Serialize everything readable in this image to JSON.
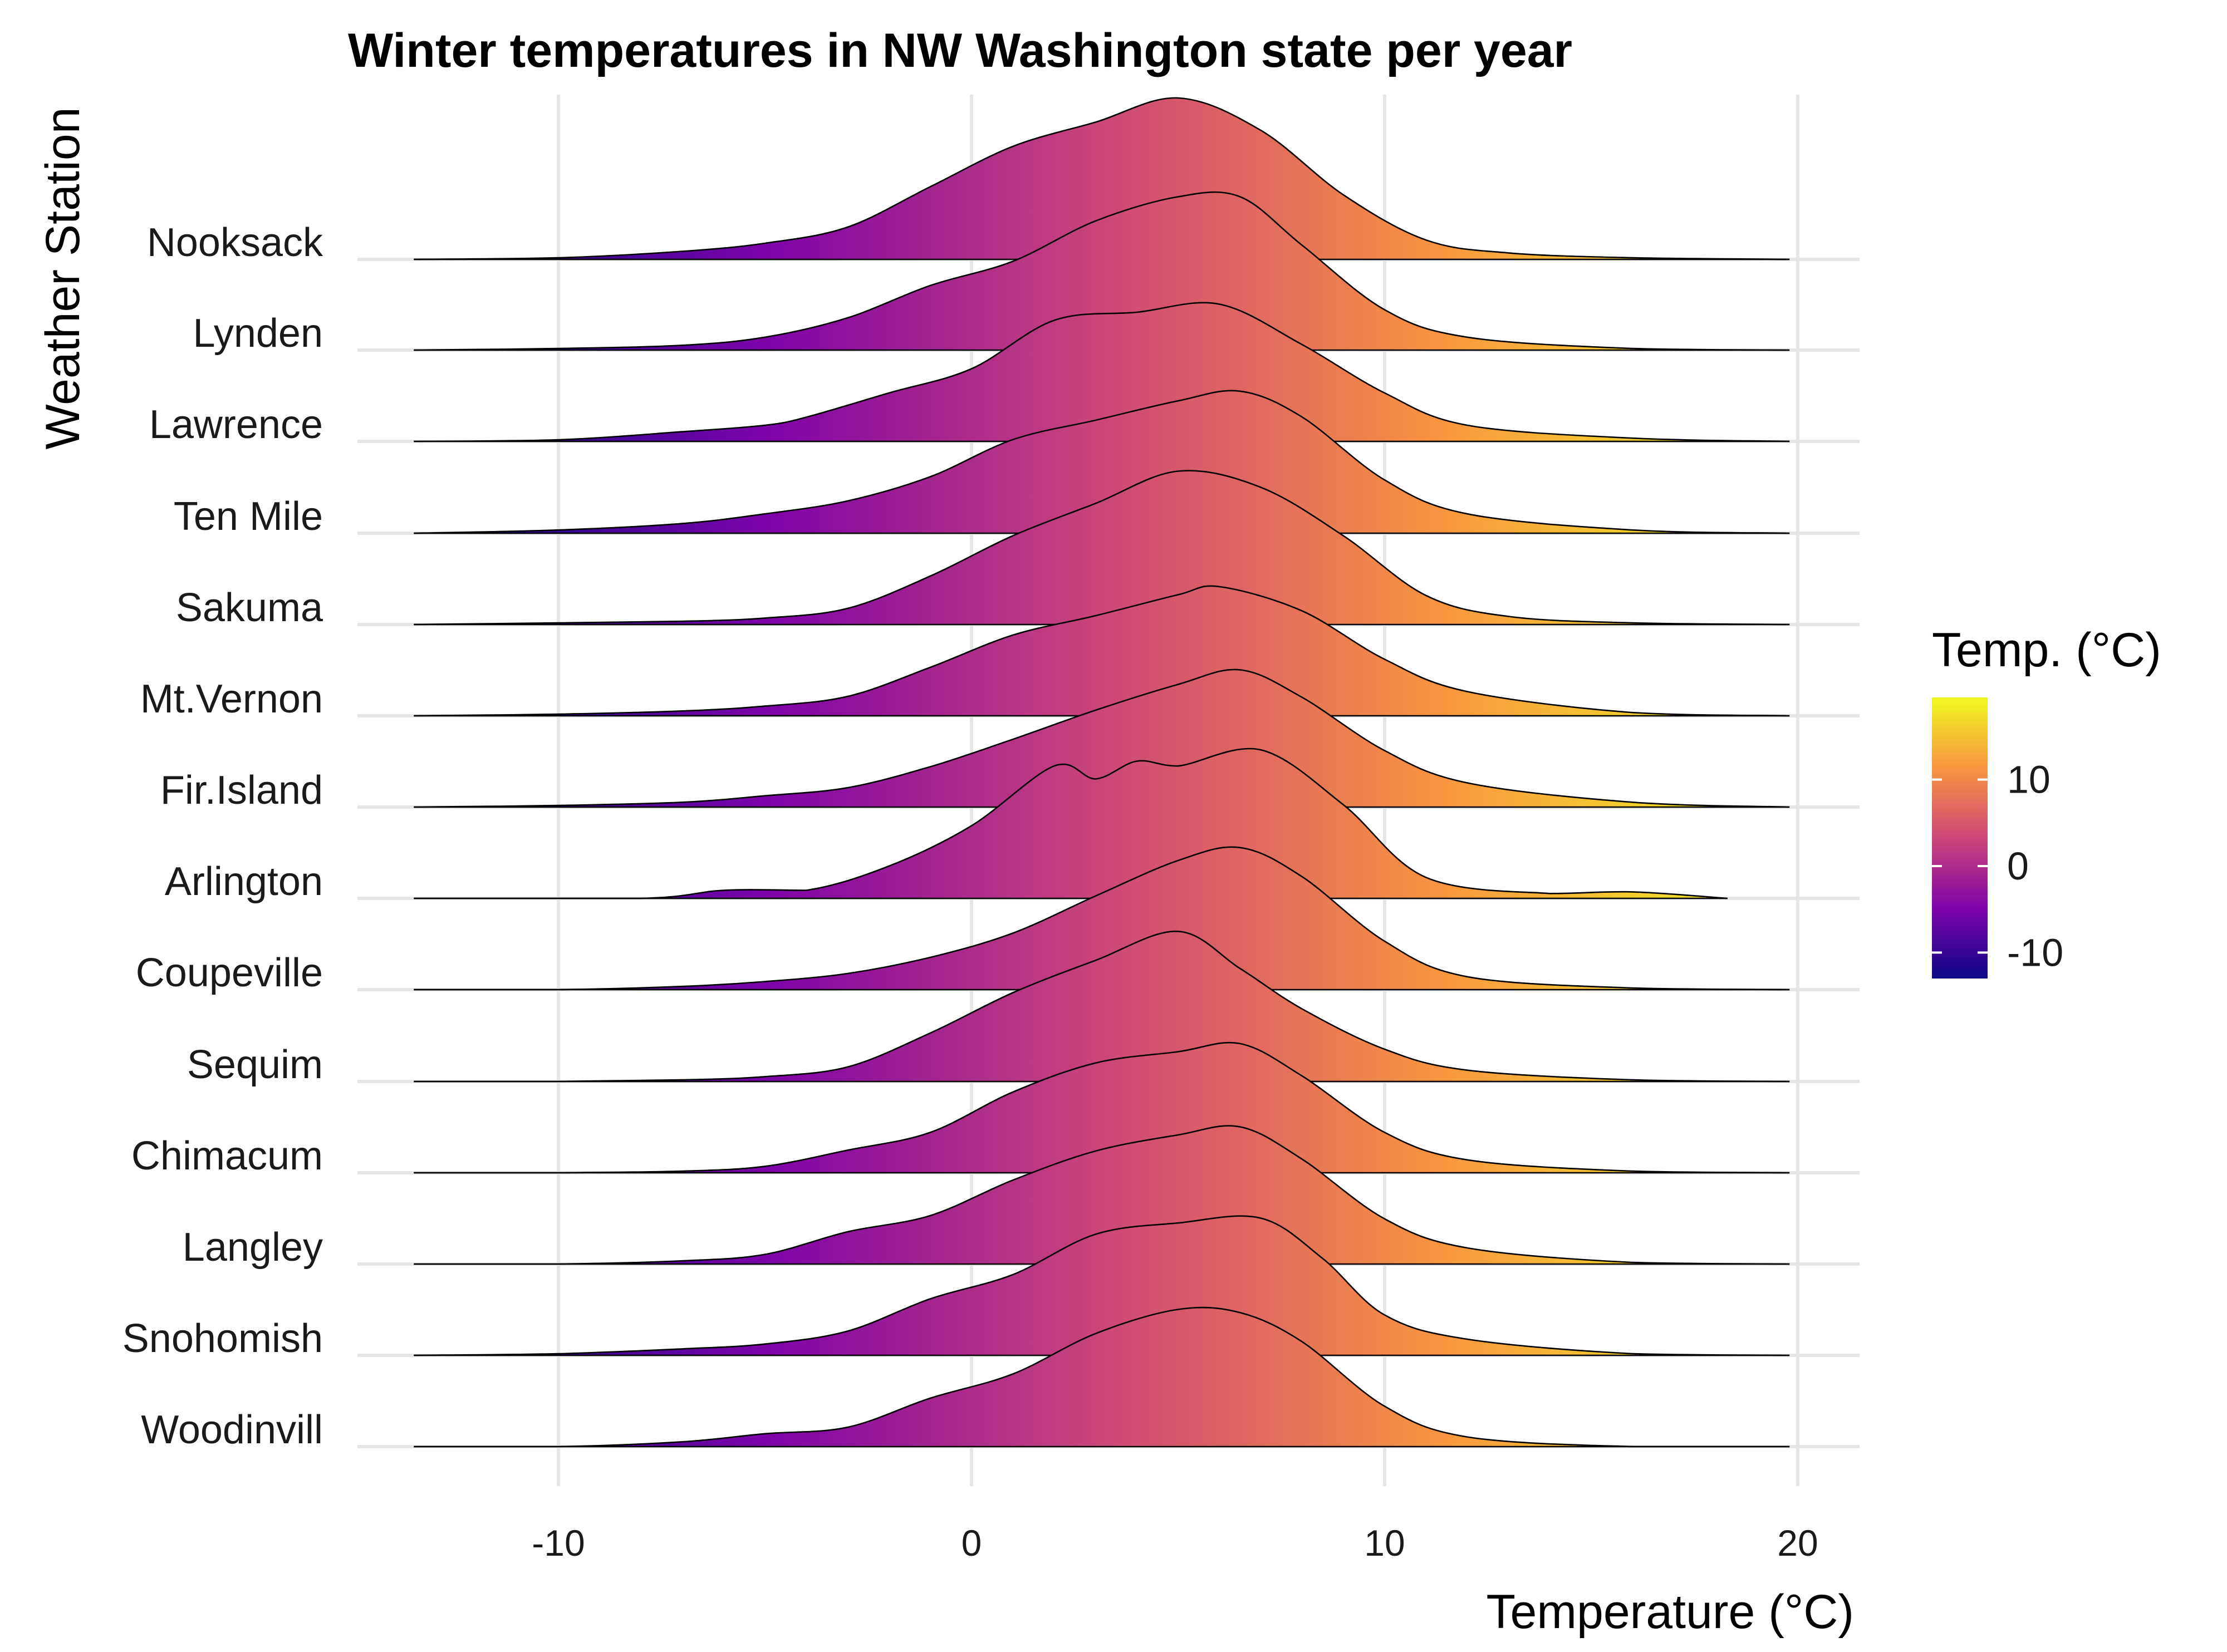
{
  "chart_data": {
    "type": "ridgeline",
    "title": "Winter temperatures in NW Washington state per year",
    "xlabel": "Temperature (°C)",
    "ylabel": "Weather Station",
    "xlim": [
      -15,
      21.5
    ],
    "x_ticks": [
      -10,
      0,
      10,
      20
    ],
    "x_tick_labels": [
      "-10",
      "0",
      "10",
      "20"
    ],
    "x_range_drawn": [
      -13.5,
      19.8
    ],
    "grid": true,
    "legend": {
      "title": "Temp. (°C)",
      "position": "right",
      "range": [
        -13,
        19.5
      ],
      "ticks": [
        10,
        0,
        -10
      ],
      "tick_labels": [
        "10",
        "0",
        "-10"
      ],
      "colors": [
        "#0D0887",
        "#7E03A8",
        "#CC4778",
        "#F89540",
        "#F0F921"
      ]
    },
    "stations": [
      {
        "name": "Nooksack",
        "x": [
          -13.5,
          -10,
          -7,
          -5,
          -3,
          -1,
          1,
          3,
          5,
          7,
          9,
          11,
          13,
          16,
          19.8
        ],
        "density": [
          0,
          0.01,
          0.05,
          0.1,
          0.2,
          0.45,
          0.7,
          0.85,
          1.0,
          0.8,
          0.4,
          0.12,
          0.04,
          0.01,
          0
        ]
      },
      {
        "name": "Lynden",
        "x": [
          -13.5,
          -10,
          -7,
          -5,
          -3,
          -1,
          1,
          3,
          5,
          6.5,
          8,
          10,
          12,
          16,
          19.8
        ],
        "density": [
          0,
          0.01,
          0.03,
          0.08,
          0.2,
          0.4,
          0.55,
          0.8,
          0.95,
          0.95,
          0.65,
          0.25,
          0.08,
          0.01,
          0
        ]
      },
      {
        "name": "Lawrence",
        "x": [
          -13.5,
          -10,
          -7,
          -5,
          -4,
          -2,
          0,
          2,
          4,
          6,
          8,
          10,
          12,
          16,
          19.8
        ],
        "density": [
          0,
          0.01,
          0.06,
          0.1,
          0.15,
          0.3,
          0.45,
          0.75,
          0.8,
          0.85,
          0.6,
          0.3,
          0.1,
          0.02,
          0
        ]
      },
      {
        "name": "Ten Mile",
        "x": [
          -13.5,
          -10,
          -7,
          -5,
          -3,
          -1,
          1,
          3,
          5,
          6.5,
          8,
          10,
          12,
          16,
          19.8
        ],
        "density": [
          0,
          0.02,
          0.06,
          0.12,
          0.2,
          0.35,
          0.58,
          0.7,
          0.82,
          0.88,
          0.72,
          0.33,
          0.12,
          0.02,
          0
        ]
      },
      {
        "name": "Sakuma",
        "x": [
          -13.5,
          -10,
          -7,
          -5,
          -3,
          -1,
          1,
          3,
          5,
          7,
          9,
          11,
          13,
          16,
          19.8
        ],
        "density": [
          0,
          0.01,
          0.02,
          0.04,
          0.1,
          0.3,
          0.55,
          0.75,
          0.95,
          0.85,
          0.55,
          0.18,
          0.05,
          0.01,
          0
        ]
      },
      {
        "name": "Mt.Vernon",
        "x": [
          -13.5,
          -10,
          -7,
          -5,
          -3,
          -1,
          1,
          3,
          5,
          6,
          8,
          10,
          12,
          16,
          19.8
        ],
        "density": [
          0,
          0.01,
          0.03,
          0.06,
          0.12,
          0.3,
          0.5,
          0.62,
          0.75,
          0.8,
          0.65,
          0.35,
          0.15,
          0.02,
          0
        ]
      },
      {
        "name": "Fir.Island",
        "x": [
          -13.5,
          -10,
          -7,
          -5,
          -3,
          -1,
          1,
          3,
          5,
          6.5,
          8,
          10,
          12,
          16,
          19.8
        ],
        "density": [
          0,
          0.01,
          0.03,
          0.07,
          0.12,
          0.25,
          0.42,
          0.6,
          0.76,
          0.85,
          0.68,
          0.35,
          0.15,
          0.03,
          0
        ]
      },
      {
        "name": "Arlington",
        "x": [
          -13.5,
          -8,
          -6,
          -4,
          -2,
          0,
          2,
          3,
          4,
          5,
          7,
          9,
          11,
          14,
          16,
          18.3
        ],
        "density": [
          0,
          0.0,
          0.05,
          0.05,
          0.2,
          0.45,
          0.82,
          0.74,
          0.85,
          0.82,
          0.92,
          0.58,
          0.13,
          0.03,
          0.04,
          0
        ]
      },
      {
        "name": "Coupeville",
        "x": [
          -13.5,
          -10,
          -7,
          -5,
          -3,
          -1,
          1,
          3,
          5,
          6.5,
          8,
          10,
          12,
          16,
          19.8
        ],
        "density": [
          0,
          0.0,
          0.02,
          0.05,
          0.1,
          0.2,
          0.35,
          0.58,
          0.8,
          0.88,
          0.7,
          0.3,
          0.08,
          0.01,
          0
        ]
      },
      {
        "name": "Sequim",
        "x": [
          -13.5,
          -10,
          -7,
          -5,
          -3,
          -1,
          1,
          3,
          5,
          6.5,
          8,
          10,
          12,
          16,
          19.8
        ],
        "density": [
          0,
          0.0,
          0.01,
          0.03,
          0.09,
          0.3,
          0.55,
          0.75,
          0.93,
          0.7,
          0.45,
          0.2,
          0.07,
          0.01,
          0
        ]
      },
      {
        "name": "Chimacum",
        "x": [
          -13.5,
          -10,
          -7,
          -5,
          -3,
          -1,
          1,
          3,
          5,
          6.5,
          8,
          10,
          12,
          16,
          19.8
        ],
        "density": [
          0,
          0.0,
          0.01,
          0.04,
          0.14,
          0.25,
          0.5,
          0.68,
          0.75,
          0.8,
          0.6,
          0.25,
          0.08,
          0.01,
          0
        ]
      },
      {
        "name": "Langley",
        "x": [
          -13.5,
          -10,
          -7,
          -5,
          -3,
          -1,
          1,
          3,
          5,
          6.5,
          8,
          10,
          12,
          16,
          19.8
        ],
        "density": [
          0,
          0.0,
          0.02,
          0.06,
          0.2,
          0.3,
          0.52,
          0.7,
          0.8,
          0.85,
          0.65,
          0.28,
          0.1,
          0.01,
          0
        ]
      },
      {
        "name": "Snohomish",
        "x": [
          -13.5,
          -10,
          -7,
          -5,
          -3,
          -1,
          1,
          3,
          5,
          7,
          8.5,
          10,
          12,
          16,
          19.8
        ],
        "density": [
          0,
          0.01,
          0.04,
          0.07,
          0.15,
          0.35,
          0.5,
          0.75,
          0.82,
          0.85,
          0.6,
          0.25,
          0.1,
          0.01,
          0
        ]
      },
      {
        "name": "Woodinvill",
        "x": [
          -13.5,
          -10,
          -7,
          -5,
          -3,
          -1,
          1,
          3,
          5,
          6.5,
          8,
          10,
          12,
          16,
          19.8
        ],
        "density": [
          0,
          0.0,
          0.03,
          0.08,
          0.12,
          0.3,
          0.45,
          0.7,
          0.85,
          0.83,
          0.65,
          0.25,
          0.06,
          0.0,
          0
        ]
      }
    ]
  }
}
